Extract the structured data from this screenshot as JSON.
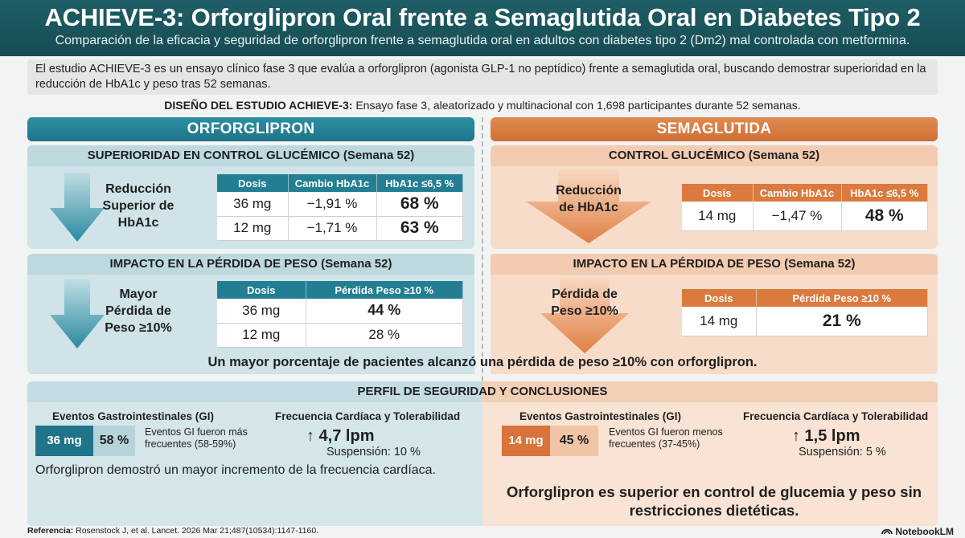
{
  "header": {
    "title": "ACHIEVE-3: Orforglipron Oral frente a Semaglutida Oral en Diabetes Tipo 2",
    "subtitle": "Comparación de la eficacia y seguridad de orforglipron frente a semaglutida oral en adultos con diabetes tipo 2 (Dm2) mal controlada con metformina."
  },
  "intro": "El estudio ACHIEVE-3 es un ensayo clínico fase 3 que evalúa a orforglipron (agonista GLP-1 no peptídico) frente a semaglutida oral, buscando demostrar superioridad en la reducción de HbA1c y peso tras 52 semanas.",
  "design": {
    "label": "DISEÑO DEL ESTUDIO ACHIEVE-3:",
    "text": " Ensayo fase 3, aleatorizado y multinacional con 1,698 participantes durante 52 semanas."
  },
  "orforglipron": {
    "header": "ORFORGLIPRON",
    "glucose": {
      "title": "SUPERIORIDAD EN CONTROL GLUCÉMICO (Semana 52)",
      "arrow_label": "Reducción Superior de HbA1c",
      "columns": [
        "Dosis",
        "Cambio HbA1c",
        "HbA1c ≤6,5 %"
      ],
      "rows": [
        {
          "dose": "36 mg",
          "change": "−1,91 %",
          "target": "68 %"
        },
        {
          "dose": "12 mg",
          "change": "−1,71 %",
          "target": "63 %"
        }
      ]
    },
    "weight": {
      "title": "IMPACTO EN LA PÉRDIDA DE PESO (Semana 52)",
      "arrow_label": "Mayor Pérdida de Peso ≥10%",
      "columns": [
        "Dosis",
        "Pérdida Peso ≥10 %"
      ],
      "rows": [
        {
          "dose": "36 mg",
          "loss": "44 %"
        },
        {
          "dose": "12 mg",
          "loss": "28 %"
        }
      ]
    }
  },
  "semaglutida": {
    "header": "SEMAGLUTIDA",
    "glucose": {
      "title": "CONTROL GLUCÉMICO (Semana 52)",
      "arrow_label": "Reducción de HbA1c",
      "columns": [
        "Dosis",
        "Cambio HbA1c",
        "HbA1c ≤6,5 %"
      ],
      "rows": [
        {
          "dose": "14 mg",
          "change": "−1,47 %",
          "target": "48 %"
        }
      ]
    },
    "weight": {
      "title": "IMPACTO EN LA PÉRDIDA DE PESO (Semana 52)",
      "arrow_label": "Pérdida de Peso ≥10%",
      "columns": [
        "Dosis",
        "Pérdida Peso ≥10 %"
      ],
      "rows": [
        {
          "dose": "14 mg",
          "loss": "21 %"
        }
      ]
    }
  },
  "weight_note": "Un mayor porcentaje de pacientes alcanzó una pérdida de peso ≥10% con orforglipron.",
  "safety": {
    "title": "PERFIL DE SEGURIDAD Y CONCLUSIONES",
    "left": {
      "gi_title": "Eventos Gastrointestinales (GI)",
      "gi_dose": "36 mg",
      "gi_pct": "58 %",
      "gi_note": "Eventos GI fueron más frecuentes (58-59%)",
      "hr_title": "Frecuencia Cardíaca y Tolerabilidad",
      "hr_value": "↑ 4,7 lpm",
      "suspension": "Suspensión: 10 %",
      "conclusion": "Orforglipron demostró un mayor incremento de la frecuencia cardíaca."
    },
    "right": {
      "gi_title": "Eventos Gastrointestinales (GI)",
      "gi_dose": "14 mg",
      "gi_pct": "45 %",
      "gi_note": "Eventos GI fueron menos frecuentes (37-45%)",
      "hr_title": "Frecuencia Cardíaca y Tolerabilidad",
      "hr_value": "↑ 1,5 lpm",
      "suspension": "Suspensión: 5 %",
      "conclusion": "Orforglipron es superior en control de glucemia y peso sin restricciones dietéticas."
    }
  },
  "footer": {
    "label": "Referencia:",
    "text": " Rosenstock J, et al. Lancet. 2026 Mar 21;487(10534):1147-1160.",
    "brand": "NotebookLM"
  },
  "colors": {
    "teal": "#1f7489",
    "orange": "#d9733a",
    "header": "#1f5e66"
  }
}
